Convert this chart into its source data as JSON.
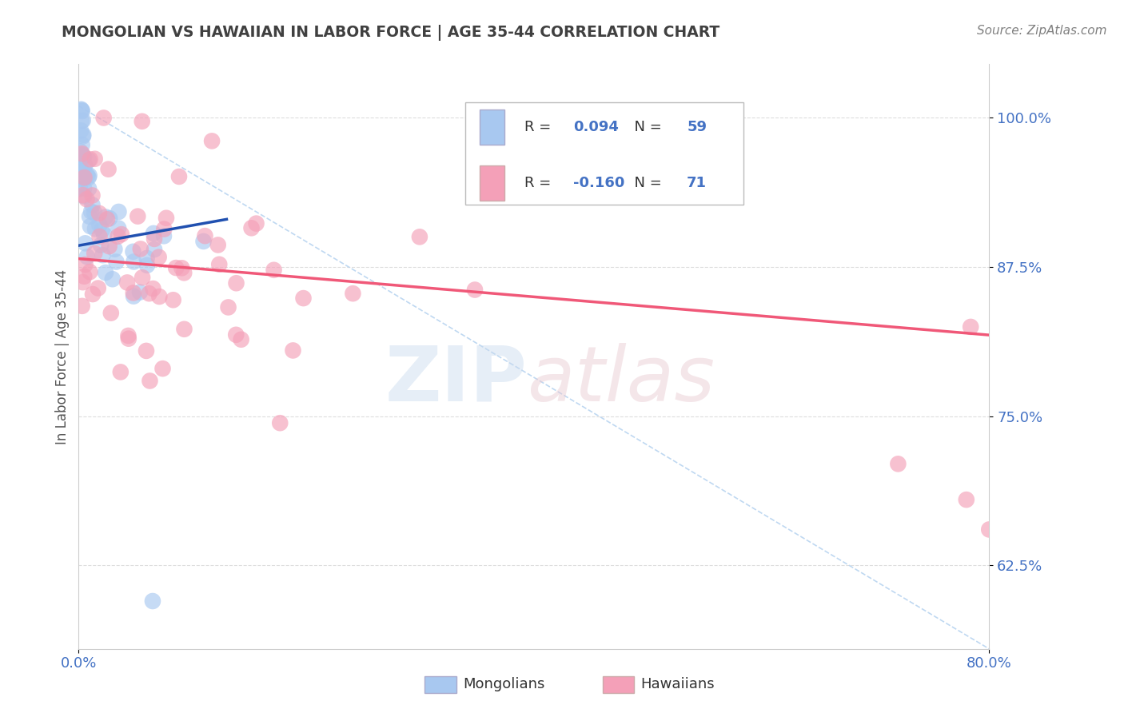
{
  "title": "MONGOLIAN VS HAWAIIAN IN LABOR FORCE | AGE 35-44 CORRELATION CHART",
  "source_text": "Source: ZipAtlas.com",
  "ylabel": "In Labor Force | Age 35-44",
  "xlim": [
    0.0,
    0.8
  ],
  "ylim": [
    0.555,
    1.045
  ],
  "yticks": [
    0.625,
    0.75,
    0.875,
    1.0
  ],
  "yticklabels": [
    "62.5%",
    "75.0%",
    "87.5%",
    "100.0%"
  ],
  "mongolian_color": "#a8c8f0",
  "hawaiian_color": "#f4a0b8",
  "mongolian_edge_color": "#8ab0e0",
  "hawaiian_edge_color": "#e890a8",
  "mongolian_line_color": "#2050b0",
  "hawaiian_line_color": "#f05878",
  "ref_line_color": "#b8d4f0",
  "R_mongolian": 0.094,
  "N_mongolian": 59,
  "R_hawaiian": -0.16,
  "N_hawaiian": 71,
  "tick_color": "#4472c4",
  "grid_color": "#dddddd",
  "title_color": "#404040",
  "source_color": "#808080"
}
